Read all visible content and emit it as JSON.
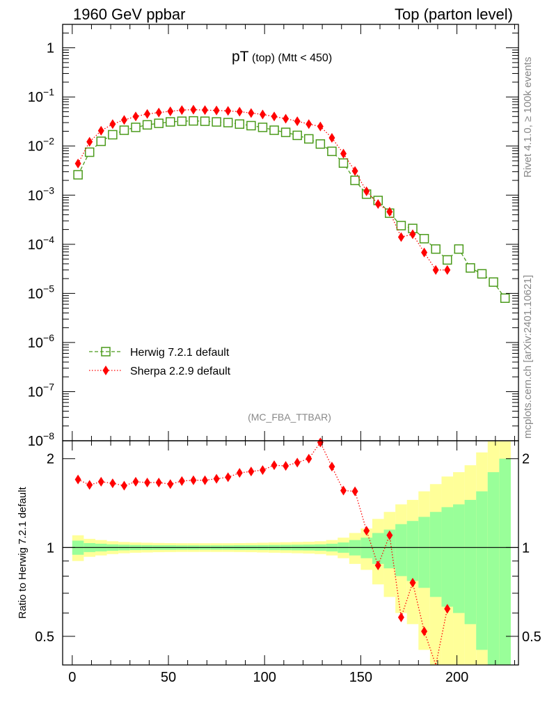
{
  "header": {
    "left": "1960 GeV ppbar",
    "right": "Top (parton level)"
  },
  "side_text": {
    "rivet": "Rivet 4.1.0, ≥ 100k events",
    "mcplots": "mcplots.cern.ch [arXiv:2401.10621]"
  },
  "chart_data": {
    "type": "line",
    "title_main": "pT",
    "title_sub": "(top) (Mtt < 450)",
    "analysis_tag": "(MC_FBA_TTBAR)",
    "xlabel": "",
    "ylabel_ratio": "Ratio to Herwig 7.2.1 default",
    "xlim": [
      -5,
      232
    ],
    "ylim_main": [
      1e-08,
      3
    ],
    "ylim_ratio": [
      0.4,
      2.3
    ],
    "x_ticks": [
      "0",
      "50",
      "100",
      "150",
      "200"
    ],
    "y_ticks_main": [
      "1",
      "10^-1",
      "10^-2",
      "10^-3",
      "10^-4",
      "10^-5",
      "10^-6",
      "10^-7",
      "10^-8"
    ],
    "y_ticks_ratio": [
      "0.5",
      "1",
      "2"
    ],
    "legend": {
      "position": "center-left",
      "entries": [
        "Herwig 7.2.1 default",
        "Sherpa 2.2.9 default"
      ]
    },
    "x": [
      3,
      9,
      15,
      21,
      27,
      33,
      39,
      45,
      51,
      57,
      63,
      69,
      75,
      81,
      87,
      93,
      99,
      105,
      111,
      117,
      123,
      129,
      135,
      141,
      147,
      153,
      159,
      165,
      171,
      177,
      183,
      189,
      195,
      201,
      207,
      213,
      219,
      225
    ],
    "series": [
      {
        "name": "Herwig 7.2.1 default",
        "color": "#4a9a1a",
        "marker": "open-square",
        "values": [
          0.0026,
          0.0075,
          0.0125,
          0.017,
          0.021,
          0.024,
          0.027,
          0.029,
          0.031,
          0.032,
          0.0325,
          0.032,
          0.031,
          0.03,
          0.028,
          0.026,
          0.024,
          0.021,
          0.019,
          0.0165,
          0.014,
          0.011,
          0.0078,
          0.0045,
          0.002,
          0.00105,
          0.00078,
          0.00043,
          0.00024,
          0.00021,
          0.00013,
          8e-05,
          4.8e-05,
          8e-05,
          3.3e-05,
          2.5e-05,
          1.7e-05,
          8e-06
        ]
      },
      {
        "name": "Sherpa 2.2.9 default",
        "color": "#ff0000",
        "marker": "filled-diamond",
        "values": [
          0.0044,
          0.0122,
          0.0205,
          0.028,
          0.034,
          0.04,
          0.045,
          0.048,
          0.051,
          0.054,
          0.055,
          0.054,
          0.053,
          0.052,
          0.05,
          0.047,
          0.044,
          0.04,
          0.036,
          0.032,
          0.028,
          0.025,
          0.0147,
          0.007,
          0.0031,
          0.0012,
          0.00066,
          0.00046,
          0.00014,
          0.00016,
          6.8e-05,
          3e-05,
          3e-05,
          null,
          null,
          null,
          null,
          null
        ]
      }
    ],
    "ratio_values": [
      1.7,
      1.63,
      1.67,
      1.65,
      1.62,
      1.67,
      1.66,
      1.66,
      1.64,
      1.68,
      1.69,
      1.69,
      1.71,
      1.73,
      1.79,
      1.81,
      1.83,
      1.9,
      1.89,
      1.94,
      2.0,
      2.27,
      1.88,
      1.56,
      1.55,
      1.14,
      0.87,
      1.1,
      0.58,
      0.76,
      0.52,
      0.375,
      0.62
    ],
    "band_x_edges": [
      0,
      6,
      12,
      18,
      24,
      30,
      36,
      42,
      48,
      54,
      60,
      66,
      72,
      78,
      84,
      90,
      96,
      102,
      108,
      114,
      120,
      126,
      132,
      138,
      144,
      150,
      156,
      162,
      168,
      174,
      180,
      186,
      192,
      198,
      204,
      210,
      216,
      222,
      228
    ],
    "band_green_half": [
      0.055,
      0.035,
      0.03,
      0.025,
      0.022,
      0.02,
      0.019,
      0.018,
      0.018,
      0.017,
      0.017,
      0.017,
      0.017,
      0.017,
      0.018,
      0.018,
      0.019,
      0.02,
      0.021,
      0.022,
      0.023,
      0.025,
      0.03,
      0.04,
      0.06,
      0.08,
      0.12,
      0.15,
      0.2,
      0.23,
      0.27,
      0.32,
      0.37,
      0.4,
      0.45,
      0.55,
      0.8,
      1.0
    ],
    "band_yellow_half": [
      0.1,
      0.07,
      0.06,
      0.05,
      0.044,
      0.04,
      0.038,
      0.036,
      0.035,
      0.034,
      0.034,
      0.034,
      0.034,
      0.034,
      0.035,
      0.036,
      0.038,
      0.04,
      0.042,
      0.044,
      0.046,
      0.05,
      0.06,
      0.08,
      0.12,
      0.16,
      0.25,
      0.32,
      0.4,
      0.45,
      0.55,
      0.64,
      0.74,
      0.8,
      0.9,
      1.1,
      1.6,
      2.0
    ]
  }
}
